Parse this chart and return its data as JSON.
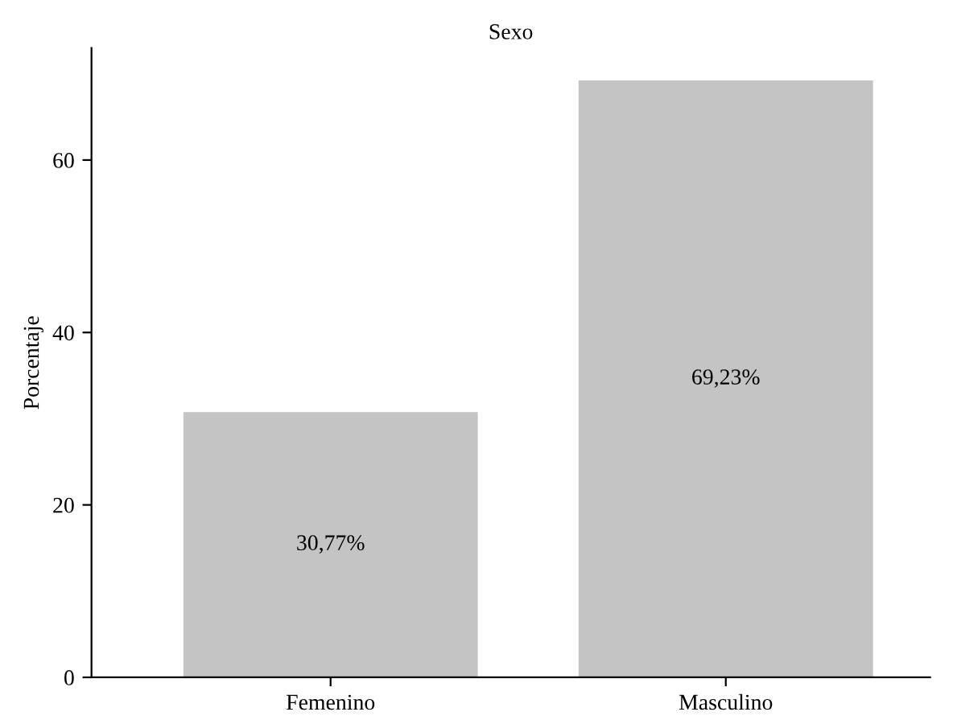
{
  "chart_data": {
    "type": "bar",
    "title": "Sexo",
    "ylabel": "Porcentaje",
    "categories": [
      "Femenino",
      "Masculino"
    ],
    "values": [
      30.77,
      69.23
    ],
    "value_labels": [
      "30,77%",
      "69,23%"
    ],
    "color": "#c4c4c4",
    "ylim": [
      0,
      73
    ],
    "yticks": [
      0,
      20,
      40,
      60
    ],
    "grid": false,
    "legend": false
  }
}
